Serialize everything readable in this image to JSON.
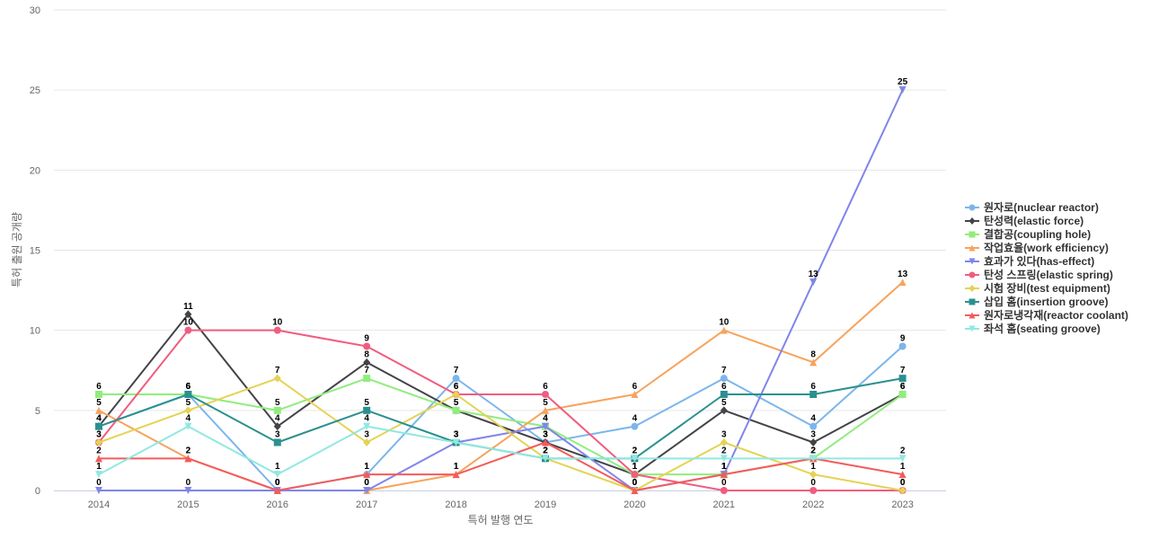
{
  "chart_data": {
    "type": "line",
    "xlabel": "특허 발행 연도",
    "ylabel": "특허 출원 공개량",
    "ylim": [
      0,
      30
    ],
    "yticks": [
      0,
      5,
      10,
      15,
      20,
      25,
      30
    ],
    "grid": true,
    "legend_position": "right",
    "x": [
      "2014",
      "2015",
      "2016",
      "2017",
      "2018",
      "2019",
      "2020",
      "2021",
      "2022",
      "2023"
    ],
    "series": [
      {
        "name": "원자로(nuclear reactor)",
        "color": "#7cb5ec",
        "marker": "circle",
        "values": [
          4,
          6,
          0,
          1,
          7,
          3,
          4,
          7,
          4,
          9
        ]
      },
      {
        "name": "탄성력(elastic force)",
        "color": "#434348",
        "marker": "diamond",
        "values": [
          4,
          11,
          4,
          8,
          5,
          3,
          1,
          5,
          3,
          6
        ]
      },
      {
        "name": "결합공(coupling hole)",
        "color": "#90ed7d",
        "marker": "square",
        "values": [
          6,
          6,
          5,
          7,
          5,
          4,
          1,
          1,
          2,
          6
        ]
      },
      {
        "name": "작업효율(work efficiency)",
        "color": "#f7a35c",
        "marker": "triangle",
        "values": [
          5,
          2,
          0,
          0,
          1,
          5,
          6,
          10,
          8,
          13
        ]
      },
      {
        "name": "효과가 있다(has-effect)",
        "color": "#8085e9",
        "marker": "triangle-down",
        "values": [
          0,
          0,
          0,
          0,
          3,
          4,
          0,
          1,
          13,
          25
        ]
      },
      {
        "name": "탄성 스프링(elastic spring)",
        "color": "#f15c80",
        "marker": "circle",
        "values": [
          3,
          10,
          10,
          9,
          6,
          6,
          1,
          0,
          0,
          0
        ]
      },
      {
        "name": "시험 장비(test equipment)",
        "color": "#e4d354",
        "marker": "diamond",
        "values": [
          3,
          5,
          7,
          3,
          6,
          2,
          0,
          3,
          1,
          0
        ]
      },
      {
        "name": "삽입 홈(insertion groove)",
        "color": "#2b908f",
        "marker": "square",
        "values": [
          4,
          6,
          3,
          5,
          3,
          2,
          2,
          6,
          6,
          7
        ]
      },
      {
        "name": "원자로냉각재(reactor coolant)",
        "color": "#f45b5b",
        "marker": "triangle",
        "values": [
          2,
          2,
          0,
          1,
          1,
          3,
          0,
          1,
          2,
          1
        ]
      },
      {
        "name": "좌석 홈(seating groove)",
        "color": "#91e8e1",
        "marker": "triangle-down",
        "values": [
          1,
          4,
          1,
          4,
          3,
          2,
          2,
          2,
          2,
          2
        ]
      }
    ]
  }
}
